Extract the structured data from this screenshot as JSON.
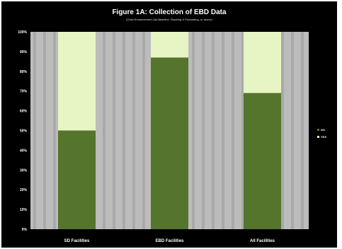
{
  "chart_data": {
    "type": "bar",
    "stacked": true,
    "percent_stacked": true,
    "title": "Figure 1A: Collection of EBD Data",
    "subtitle": "(Child Enhancement Opt-Baseline, Stacking & Fluctuating, or above)",
    "categories": [
      "SD Facilities",
      "EBD Facilities",
      "All Facilities"
    ],
    "series": [
      {
        "name": "NO",
        "values": [
          50,
          87,
          69
        ],
        "color": "#55752c"
      },
      {
        "name": "YES",
        "values": [
          50,
          13,
          31
        ],
        "color": "#e6f5c3"
      }
    ],
    "ylim": [
      0,
      100
    ],
    "yticks": [
      "0%",
      "10%",
      "20%",
      "30%",
      "40%",
      "50%",
      "60%",
      "70%",
      "80%",
      "90%",
      "100%"
    ],
    "grid": false,
    "legend_position": "right",
    "colors": {
      "background": "#000000",
      "plot_area": "#bcbcbc",
      "stripe": "#a9a9a9"
    }
  }
}
